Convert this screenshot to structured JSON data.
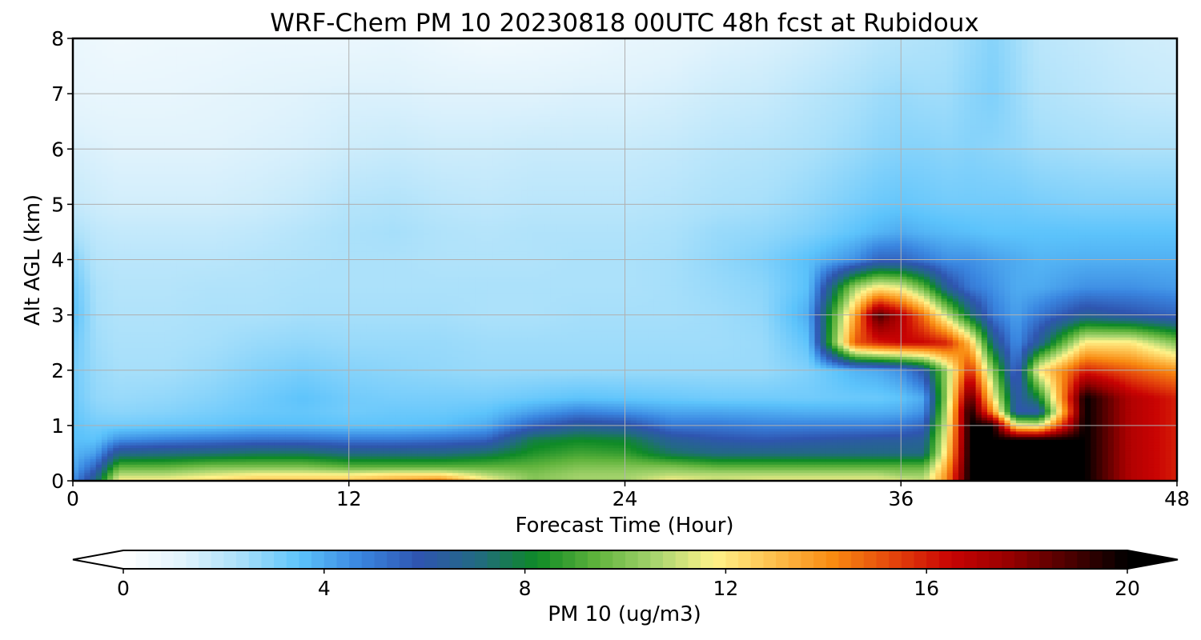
{
  "chart_data": {
    "type": "heatmap",
    "title": "WRF-Chem PM 10  20230818 00UTC 48h fcst at Rubidoux",
    "xlabel": "Forecast Time (Hour)",
    "ylabel": "Alt AGL (km)",
    "xlim": [
      0,
      48
    ],
    "ylim": [
      0,
      8
    ],
    "xticks": [
      0,
      12,
      24,
      36,
      48
    ],
    "yticks": [
      0,
      1,
      2,
      3,
      4,
      5,
      6,
      7,
      8
    ],
    "grid": true,
    "colorbar": {
      "label": "PM 10  (ug/m3)",
      "min": 0,
      "max": 20,
      "ticks": [
        0,
        4,
        8,
        12,
        16,
        20
      ],
      "extend": "both",
      "colors": [
        "#ffffff",
        "#e1f3fc",
        "#a9e0fa",
        "#5cc3fb",
        "#3a86e0",
        "#2f55b0",
        "#226a82",
        "#0e8a26",
        "#5fb33c",
        "#a6d46e",
        "#fff38a",
        "#fdc04e",
        "#f98b11",
        "#e5470c",
        "#c90303",
        "#970000",
        "#4d0000",
        "#000000"
      ]
    },
    "times": [
      0,
      1,
      2,
      4,
      6,
      8,
      10,
      12,
      14,
      16,
      18,
      20,
      22,
      24,
      26,
      28,
      30,
      32,
      34,
      35,
      36,
      37,
      38,
      39,
      40,
      41,
      42,
      44,
      46,
      48
    ],
    "altitudes": [
      0,
      0.1,
      0.25,
      0.5,
      0.75,
      1.0,
      1.25,
      1.5,
      2.0,
      2.5,
      3.0,
      3.5,
      4.0,
      4.5,
      5.0,
      6.0,
      7.0,
      8.0
    ],
    "values": [
      [
        4.5,
        7,
        12,
        12,
        12.5,
        13,
        13,
        13,
        13.5,
        14.5,
        12,
        10,
        10.5,
        10.5,
        12,
        11,
        11.5,
        11.5,
        11.5,
        11.5,
        11.5,
        11,
        14,
        20,
        20,
        20,
        20,
        20,
        17,
        16
      ],
      [
        4.3,
        6.5,
        11,
        11,
        11.5,
        12,
        12,
        12,
        12.5,
        12.5,
        11,
        10,
        10.5,
        10.5,
        11,
        11,
        11,
        11,
        11,
        11,
        10.5,
        10.5,
        14,
        20,
        20,
        20,
        20,
        20,
        17,
        16
      ],
      [
        4,
        5.5,
        9.5,
        9.5,
        10,
        10,
        10,
        9.5,
        9.5,
        9.5,
        9.5,
        9.5,
        10,
        10,
        10,
        9.5,
        9.5,
        9.5,
        9.5,
        9.5,
        9.5,
        9.5,
        13.5,
        20,
        20,
        20,
        20,
        20,
        17,
        16
      ],
      [
        3.8,
        4.2,
        6.8,
        7,
        7.2,
        7.5,
        7.5,
        7,
        7,
        7,
        7.5,
        8.5,
        9,
        8.8,
        7.5,
        7,
        7,
        7,
        7,
        7,
        7,
        7,
        12.5,
        20,
        20,
        20,
        20,
        20,
        17,
        16
      ],
      [
        3.6,
        3.5,
        4.5,
        4.8,
        5,
        5.2,
        5.2,
        5,
        5,
        5.2,
        5.5,
        7.8,
        8.2,
        8,
        6.5,
        6,
        5.8,
        6,
        6.2,
        6.3,
        6.3,
        6.5,
        12,
        20,
        20,
        20,
        20,
        20,
        17,
        16
      ],
      [
        3.5,
        3.2,
        3.2,
        3.3,
        3.4,
        3.6,
        3.6,
        3.5,
        3.5,
        3.6,
        4,
        5.5,
        6.5,
        6.2,
        5,
        5,
        4.8,
        4.8,
        4.8,
        4.8,
        5,
        5.5,
        11.5,
        20,
        20,
        12,
        11.5,
        20,
        17,
        16
      ],
      [
        3.4,
        2.9,
        2.8,
        2.9,
        3.1,
        3.3,
        3.4,
        3.2,
        3.3,
        3.3,
        3.5,
        4.2,
        4.8,
        4.5,
        4.1,
        4.1,
        4,
        3.9,
        3.9,
        3.9,
        4,
        4.5,
        11,
        20,
        14,
        6,
        6,
        20,
        17,
        16
      ],
      [
        3.3,
        2.7,
        2.6,
        2.7,
        2.9,
        3.2,
        3.5,
        3.2,
        3.1,
        3.1,
        3.1,
        3.3,
        3.5,
        3.4,
        3.3,
        3.2,
        3.2,
        3.2,
        3.3,
        3.3,
        3.5,
        4,
        10.5,
        19,
        12,
        6,
        8,
        20,
        17,
        16
      ],
      [
        3.2,
        2.6,
        2.4,
        2.4,
        2.6,
        2.9,
        3.1,
        2.9,
        2.8,
        2.7,
        2.6,
        2.6,
        2.6,
        2.6,
        2.6,
        2.6,
        2.6,
        3,
        3.8,
        4,
        4.5,
        6,
        10.5,
        16,
        10,
        5,
        12,
        16,
        15,
        14
      ],
      [
        3.3,
        2.5,
        2.3,
        2.3,
        2.4,
        2.6,
        2.7,
        2.6,
        2.6,
        2.6,
        2.5,
        2.5,
        2.5,
        2.5,
        2.5,
        2.5,
        2.6,
        3.5,
        15,
        16,
        16.5,
        16.5,
        16,
        13,
        7,
        4.5,
        6.5,
        12,
        12,
        10
      ],
      [
        3.6,
        2.4,
        2.2,
        2.2,
        2.3,
        2.3,
        2.4,
        2.4,
        2.4,
        2.4,
        2.3,
        2.3,
        2.4,
        2.4,
        2.4,
        2.5,
        2.7,
        4,
        13.5,
        19,
        17,
        14.5,
        11,
        7.5,
        5,
        4.2,
        5,
        6.5,
        6,
        5.5
      ],
      [
        3.4,
        2.3,
        2.1,
        2.1,
        2.2,
        2.2,
        2.3,
        2.3,
        2.3,
        2.3,
        2.3,
        2.3,
        2.3,
        2.3,
        2.4,
        2.6,
        2.8,
        3.6,
        10.5,
        12,
        11.5,
        9.5,
        6.5,
        5,
        4.5,
        4,
        4,
        4.5,
        4.5,
        4.3
      ],
      [
        3,
        2.1,
        2,
        2,
        2,
        2.1,
        2.2,
        2.3,
        2.3,
        2.2,
        2.2,
        2.2,
        2.3,
        2.3,
        2.4,
        2.7,
        3,
        3.6,
        4.5,
        5.5,
        5.5,
        5,
        4.5,
        4.5,
        4.2,
        4,
        3.8,
        3.9,
        3.9,
        3.9
      ],
      [
        2.3,
        1.9,
        1.8,
        1.8,
        1.8,
        1.9,
        2.1,
        2.3,
        2.4,
        2.2,
        2.1,
        2.2,
        2.2,
        2.2,
        2.3,
        2.6,
        2.7,
        3,
        3.5,
        3.8,
        4,
        3.8,
        3.7,
        3.6,
        3.5,
        3.5,
        3.5,
        3.5,
        3.5,
        3.5
      ],
      [
        1.8,
        1.6,
        1.5,
        1.5,
        1.5,
        1.6,
        1.8,
        2.1,
        2.2,
        2,
        1.9,
        2,
        2,
        2,
        2.1,
        2.3,
        2.4,
        2.7,
        3.1,
        3.3,
        3.4,
        3.3,
        3.2,
        3.2,
        3.2,
        3.2,
        3.1,
        3,
        3,
        3
      ],
      [
        1.4,
        1.3,
        1.2,
        1.2,
        1.2,
        1.3,
        1.4,
        1.6,
        1.7,
        1.6,
        1.6,
        1.7,
        1.7,
        1.7,
        1.8,
        2,
        2.1,
        2.3,
        2.6,
        2.8,
        2.9,
        2.9,
        2.8,
        2.9,
        2.8,
        2.7,
        2.5,
        2.4,
        2.3,
        2.3
      ],
      [
        1,
        0.9,
        0.9,
        0.9,
        1,
        1.1,
        1.2,
        1.3,
        1.3,
        1.2,
        1.2,
        1.2,
        1.3,
        1.3,
        1.4,
        1.6,
        1.7,
        2,
        2.3,
        2.5,
        2.6,
        2.5,
        2.5,
        2.8,
        3,
        2.6,
        2.2,
        2,
        1.8,
        1.7
      ],
      [
        0.8,
        0.7,
        0.6,
        0.7,
        0.7,
        0.8,
        0.8,
        0.8,
        0.9,
        0.7,
        0.5,
        0.6,
        0.7,
        0.9,
        1,
        1.2,
        1.3,
        1.5,
        1.8,
        2,
        2.1,
        2.2,
        2.3,
        2.6,
        2.9,
        2.5,
        2,
        1.8,
        1.6,
        1.5
      ]
    ]
  }
}
